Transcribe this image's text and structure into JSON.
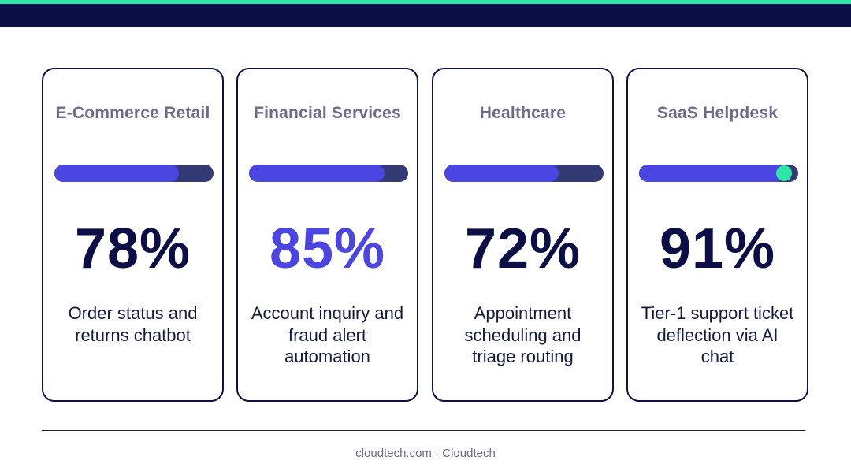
{
  "colors": {
    "accent": "#2ee6a6",
    "navy": "#0b0f45",
    "brand_purple": "#4b46e2",
    "track": "#343a73",
    "muted_text": "#6e6a8a"
  },
  "cards": [
    {
      "title": "E-Commerce Retail",
      "progress_fraction": 0.78,
      "stat": "78%",
      "description": "Order status and returns chatbot"
    },
    {
      "title": "Financial Services",
      "progress_fraction": 0.85,
      "stat": "85%",
      "description": "Account inquiry and fraud alert automation"
    },
    {
      "title": "Healthcare",
      "progress_fraction": 0.72,
      "stat": "72%",
      "description": "Appointment scheduling and triage routing"
    },
    {
      "title": "SaaS Helpdesk",
      "progress_fraction": 0.91,
      "stat": "91%",
      "description": "Tier-1 support ticket deflection via AI chat"
    }
  ],
  "footer": {
    "text": "cloudtech.com · Cloudtech"
  }
}
